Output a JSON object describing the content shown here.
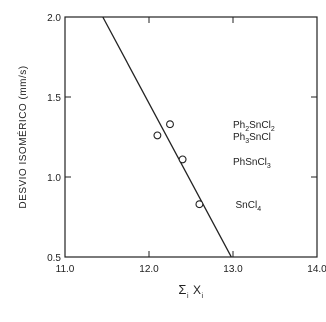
{
  "chart_data": {
    "type": "scatter",
    "xlabel_symbol": "Σ",
    "xlabel_subscript": "i",
    "xlabel_var": "X",
    "xlabel_var_subscript": "i",
    "ylabel": "DESVIO ISOMÉRICO (mm/s)",
    "xlim": [
      11.0,
      14.0
    ],
    "ylim": [
      0.5,
      2.0
    ],
    "x_ticks": [
      11.0,
      12.0,
      13.0,
      14.0
    ],
    "x_tick_labels": [
      "11.0",
      "12.0",
      "13.0",
      "14.0"
    ],
    "y_ticks": [
      0.5,
      1.0,
      1.5,
      2.0
    ],
    "y_tick_labels": [
      "0.5",
      "1.0",
      "1.5",
      "2.0"
    ],
    "points": [
      {
        "x": 12.1,
        "y": 1.26
      },
      {
        "x": 12.25,
        "y": 1.33
      },
      {
        "x": 12.4,
        "y": 1.11
      },
      {
        "x": 12.6,
        "y": 0.83
      }
    ],
    "fit_line": [
      {
        "x": 11.45,
        "y": 2.0
      },
      {
        "x": 12.98,
        "y": 0.5
      }
    ],
    "annotations": [
      {
        "base": "Ph",
        "sub1": "2",
        "mid": "SnCl",
        "sub2": "2",
        "x": 13.0,
        "y": 1.33
      },
      {
        "base": "Ph",
        "sub1": "3",
        "mid": "SnCl",
        "sub2": "",
        "x": 13.0,
        "y": 1.255
      },
      {
        "base": "PhSnCl",
        "sub1": "3",
        "mid": "",
        "sub2": "",
        "x": 13.0,
        "y": 1.1
      },
      {
        "base": "SnCl",
        "sub1": "4",
        "mid": "",
        "sub2": "",
        "x": 13.03,
        "y": 0.83
      }
    ],
    "grid": false,
    "legend": "none"
  }
}
